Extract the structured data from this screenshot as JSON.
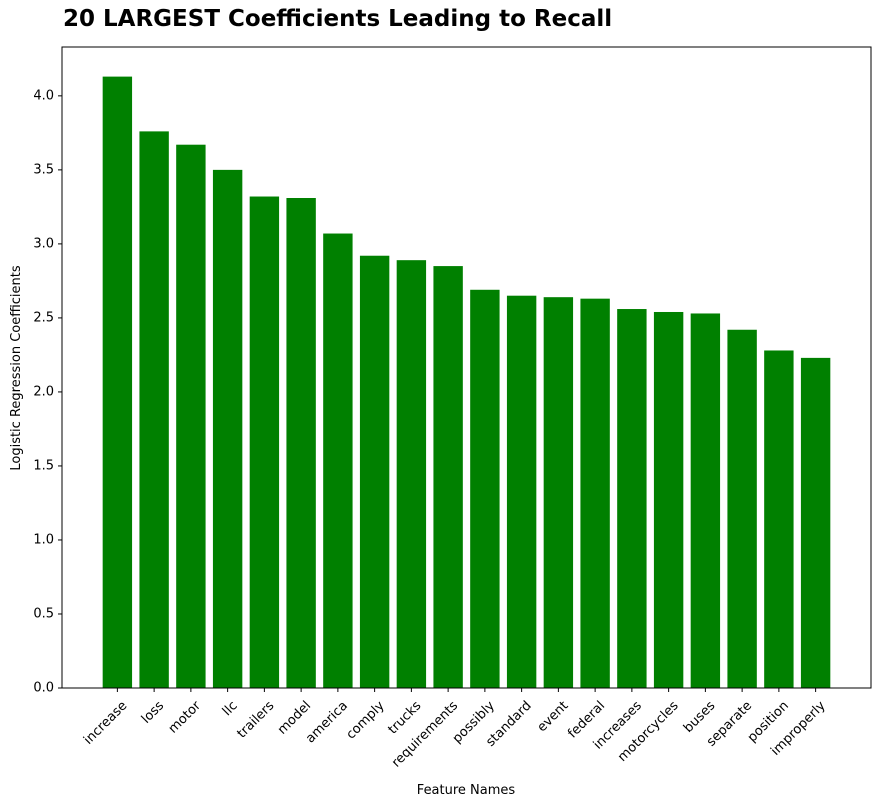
{
  "chart_data": {
    "type": "bar",
    "title": "20 LARGEST Coefficients Leading to Recall",
    "xlabel": "Feature Names",
    "ylabel": "Logistic Regression Coefficients",
    "categories": [
      "increase",
      "loss",
      "motor",
      "llc",
      "trailers",
      "model",
      "america",
      "comply",
      "trucks",
      "requirements",
      "possibly",
      "standard",
      "event",
      "federal",
      "increases",
      "motorcycles",
      "buses",
      "separate",
      "position",
      "improperly"
    ],
    "values": [
      4.13,
      3.76,
      3.67,
      3.5,
      3.32,
      3.31,
      3.07,
      2.92,
      2.89,
      2.85,
      2.69,
      2.65,
      2.64,
      2.63,
      2.56,
      2.54,
      2.53,
      2.42,
      2.28,
      2.23
    ],
    "ylim": [
      0,
      4.33
    ],
    "yticks": [
      0.0,
      0.5,
      1.0,
      1.5,
      2.0,
      2.5,
      3.0,
      3.5,
      4.0
    ],
    "ytick_labels": [
      "0.0",
      "0.5",
      "1.0",
      "1.5",
      "2.0",
      "2.5",
      "3.0",
      "3.5",
      "4.0"
    ],
    "bar_color": "#008000",
    "grid": false,
    "legend": "none"
  }
}
